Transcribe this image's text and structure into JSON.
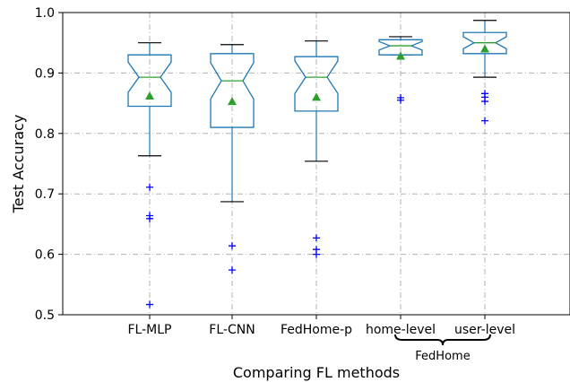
{
  "chart_data": {
    "type": "box",
    "xlabel": "Comparing FL methods",
    "ylabel": "Test Accuracy",
    "ylim": [
      0.5,
      1.0
    ],
    "yticks": [
      "0.5",
      "0.6",
      "0.7",
      "0.8",
      "0.9",
      "1.0"
    ],
    "grid": "dash-dot, both axes",
    "group_label": "FedHome",
    "group_members": [
      "home-level",
      "user-level"
    ],
    "colors": {
      "box": "#1f77b4",
      "median": "#2ca02c",
      "mean_marker": "#2ca02c",
      "outlier": "#0000ff",
      "whisker_cap": "#000000",
      "grid": "#b0b0b0"
    },
    "boxes": [
      {
        "label": "FL-MLP",
        "whisker_low": 0.763,
        "q1": 0.845,
        "median": 0.893,
        "q3": 0.93,
        "whisker_high": 0.95,
        "notch_low": 0.868,
        "notch_high": 0.918,
        "mean": 0.862,
        "outliers": [
          0.711,
          0.664,
          0.659,
          0.517
        ]
      },
      {
        "label": "FL-CNN",
        "whisker_low": 0.687,
        "q1": 0.81,
        "median": 0.887,
        "q3": 0.932,
        "whisker_high": 0.947,
        "notch_low": 0.857,
        "notch_high": 0.917,
        "mean": 0.853,
        "outliers": [
          0.614,
          0.574
        ]
      },
      {
        "label": "FedHome-p",
        "whisker_low": 0.754,
        "q1": 0.837,
        "median": 0.893,
        "q3": 0.927,
        "whisker_high": 0.953,
        "notch_low": 0.866,
        "notch_high": 0.92,
        "mean": 0.86,
        "outliers": [
          0.627,
          0.608,
          0.6
        ]
      },
      {
        "label": "home-level",
        "whisker_low": 0.93,
        "q1": 0.93,
        "median": 0.945,
        "q3": 0.955,
        "whisker_high": 0.96,
        "notch_low": 0.938,
        "notch_high": 0.952,
        "mean": 0.928,
        "outliers": [
          0.859,
          0.855
        ]
      },
      {
        "label": "user-level",
        "whisker_low": 0.893,
        "q1": 0.932,
        "median": 0.95,
        "q3": 0.967,
        "whisker_high": 0.987,
        "notch_low": 0.94,
        "notch_high": 0.96,
        "mean": 0.94,
        "outliers": [
          0.866,
          0.86,
          0.853,
          0.821
        ]
      }
    ]
  }
}
